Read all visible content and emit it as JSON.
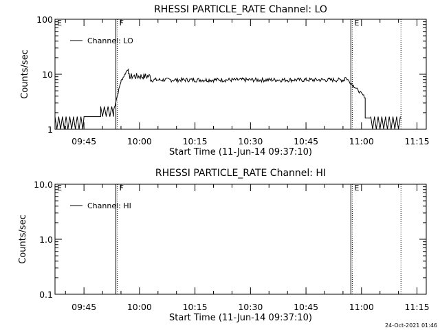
{
  "chart_data": [
    {
      "type": "line",
      "title": "RHESSI PARTICLE_RATE Channel: LO",
      "xlabel": "Start Time (11-Jun-14 09:37:10)",
      "ylabel": "Counts/sec",
      "yscale": "log",
      "ylim": [
        1,
        100
      ],
      "yticks": [
        "1",
        "10",
        "100"
      ],
      "xlim": [
        "09:37:10",
        "11:17:30"
      ],
      "xticks": [
        "09:45",
        "10:00",
        "10:15",
        "10:30",
        "10:45",
        "11:00",
        "11:15"
      ],
      "legend": "Channel: LO",
      "flags": [
        {
          "label": "E",
          "time": "09:37:10",
          "style": "none"
        },
        {
          "label": "F",
          "time": "09:54:00",
          "style": "solid+dotted"
        },
        {
          "label": "E",
          "time": "10:57:30",
          "style": "solid+dotted"
        },
        {
          "label": "",
          "time": "11:10:40",
          "style": "dotted"
        }
      ],
      "series": [
        {
          "name": "Channel: LO",
          "segments": [
            {
              "start": "09:37:10",
              "end": "09:45:00",
              "values": "osc",
              "low": 1,
              "high": 1.7
            },
            {
              "start": "09:45:00",
              "end": "09:49:30",
              "values": "const",
              "level": 1.7
            },
            {
              "start": "09:49:30",
              "end": "09:53:00",
              "values": "osc",
              "low": 1.7,
              "high": 2.6
            },
            {
              "start": "09:53:00",
              "end": "09:55:00",
              "values": "ramp",
              "from": 2.2,
              "to": 7.5
            },
            {
              "start": "09:55:00",
              "end": "09:57:00",
              "values": "ramp",
              "from": 7.5,
              "to": 13
            },
            {
              "start": "09:57:00",
              "end": "10:03:00",
              "values": "noise",
              "center": 9.2,
              "amp": 1.3
            },
            {
              "start": "10:03:00",
              "end": "10:55:30",
              "values": "noise",
              "center": 7.9,
              "amp": 0.7
            },
            {
              "start": "10:55:30",
              "end": "10:58:00",
              "values": "ramp",
              "from": 9.0,
              "to": 6.0
            },
            {
              "start": "10:58:00",
              "end": "11:01:00",
              "values": "ramp",
              "from": 6.0,
              "to": 3.8
            },
            {
              "start": "11:01:00",
              "end": "11:02:30",
              "values": "const",
              "level": 1.6
            },
            {
              "start": "11:02:30",
              "end": "11:10:40",
              "values": "osc",
              "low": 1,
              "high": 1.7
            }
          ]
        }
      ]
    },
    {
      "type": "line",
      "title": "RHESSI PARTICLE_RATE Channel: HI",
      "xlabel": "Start Time (11-Jun-14 09:37:10)",
      "ylabel": "Counts/sec",
      "yscale": "log",
      "ylim": [
        0.1,
        10
      ],
      "yticks": [
        "0.1",
        "1.0",
        "10.0"
      ],
      "xlim": [
        "09:37:10",
        "11:17:30"
      ],
      "xticks": [
        "09:45",
        "10:00",
        "10:15",
        "10:30",
        "10:45",
        "11:00",
        "11:15"
      ],
      "legend": "Channel: HI",
      "flags": [
        {
          "label": "E",
          "time": "09:37:10",
          "style": "none"
        },
        {
          "label": "F",
          "time": "09:54:00",
          "style": "solid+dotted"
        },
        {
          "label": "E",
          "time": "10:57:30",
          "style": "solid+dotted"
        },
        {
          "label": "",
          "time": "11:10:40",
          "style": "dotted"
        }
      ],
      "series": [
        {
          "name": "Channel: HI",
          "segments": []
        }
      ]
    }
  ],
  "footer": {
    "timestamp": "24-Oct-2021 01:46"
  }
}
